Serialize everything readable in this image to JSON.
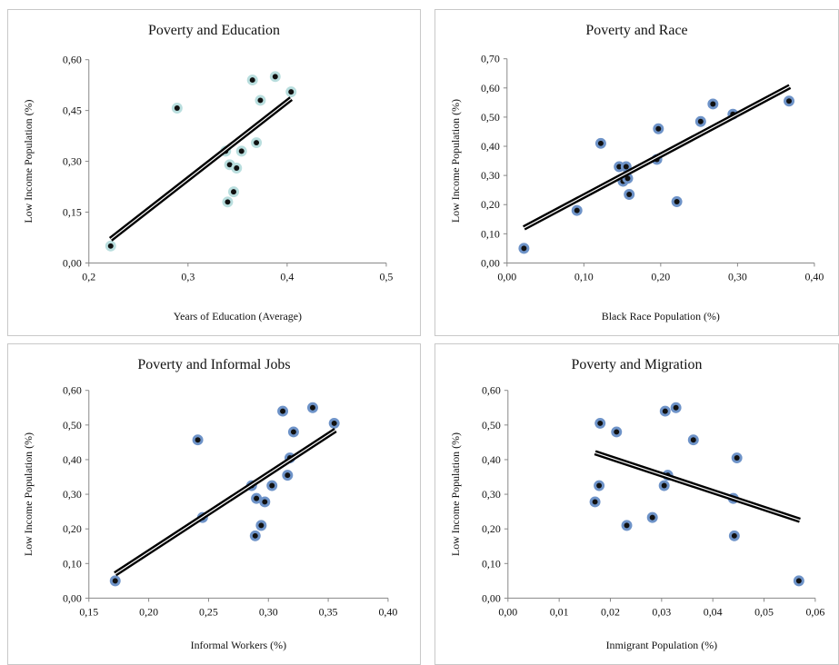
{
  "chart_data": [
    {
      "type": "scatter",
      "title": "Poverty and Education",
      "xlabel": "Years of Education (Average)",
      "ylabel": "Low Income Population (%)",
      "xlim": [
        0.2,
        0.5
      ],
      "ylim": [
        0,
        0.6
      ],
      "x_ticks": [
        "0,2",
        "0,3",
        "0,4",
        "0,5"
      ],
      "x_tick_values": [
        0.2,
        0.3,
        0.4,
        0.5
      ],
      "y_ticks": [
        "0,00",
        "0,15",
        "0,30",
        "0,45",
        "0,60"
      ],
      "y_tick_values": [
        0,
        0.15,
        0.3,
        0.45,
        0.6
      ],
      "points": [
        {
          "x": 0.222,
          "y": 0.05
        },
        {
          "x": 0.289,
          "y": 0.457
        },
        {
          "x": 0.338,
          "y": 0.33
        },
        {
          "x": 0.34,
          "y": 0.18
        },
        {
          "x": 0.342,
          "y": 0.29
        },
        {
          "x": 0.346,
          "y": 0.21
        },
        {
          "x": 0.349,
          "y": 0.28
        },
        {
          "x": 0.354,
          "y": 0.33
        },
        {
          "x": 0.365,
          "y": 0.54
        },
        {
          "x": 0.369,
          "y": 0.355
        },
        {
          "x": 0.373,
          "y": 0.48
        },
        {
          "x": 0.388,
          "y": 0.55
        },
        {
          "x": 0.404,
          "y": 0.505
        }
      ],
      "trendline": {
        "x": [
          0.222,
          0.404
        ],
        "y": [
          0.07,
          0.485
        ]
      },
      "marker_color": "#b9dede"
    },
    {
      "type": "scatter",
      "title": "Poverty and Race",
      "xlabel": "Black Race Population (%)",
      "ylabel": "Low Income Population (%)",
      "xlim": [
        0,
        0.4
      ],
      "ylim": [
        0,
        0.7
      ],
      "x_ticks": [
        "0,00",
        "0,10",
        "0,20",
        "0,30",
        "0,40"
      ],
      "x_tick_values": [
        0,
        0.1,
        0.2,
        0.3,
        0.4
      ],
      "y_ticks": [
        "0,00",
        "0,10",
        "0,20",
        "0,30",
        "0,40",
        "0,50",
        "0,60",
        "0,70"
      ],
      "y_tick_values": [
        0,
        0.1,
        0.2,
        0.3,
        0.4,
        0.5,
        0.6,
        0.7
      ],
      "points": [
        {
          "x": 0.022,
          "y": 0.05
        },
        {
          "x": 0.091,
          "y": 0.18
        },
        {
          "x": 0.122,
          "y": 0.41
        },
        {
          "x": 0.146,
          "y": 0.33
        },
        {
          "x": 0.151,
          "y": 0.28
        },
        {
          "x": 0.155,
          "y": 0.33
        },
        {
          "x": 0.157,
          "y": 0.29
        },
        {
          "x": 0.159,
          "y": 0.235
        },
        {
          "x": 0.195,
          "y": 0.355
        },
        {
          "x": 0.197,
          "y": 0.46
        },
        {
          "x": 0.221,
          "y": 0.21
        },
        {
          "x": 0.252,
          "y": 0.485
        },
        {
          "x": 0.268,
          "y": 0.545
        },
        {
          "x": 0.294,
          "y": 0.51
        },
        {
          "x": 0.367,
          "y": 0.555
        }
      ],
      "trendline": {
        "x": [
          0.022,
          0.368
        ],
        "y": [
          0.12,
          0.605
        ]
      },
      "marker_color": "#6e93c8"
    },
    {
      "type": "scatter",
      "title": "Poverty and Informal Jobs",
      "xlabel": "Informal Workers (%)",
      "ylabel": "Low Income Population (%)",
      "xlim": [
        0.15,
        0.4
      ],
      "ylim": [
        0,
        0.6
      ],
      "x_ticks": [
        "0,15",
        "0,20",
        "0,25",
        "0,30",
        "0,35",
        "0,40"
      ],
      "x_tick_values": [
        0.15,
        0.2,
        0.25,
        0.3,
        0.35,
        0.4
      ],
      "y_ticks": [
        "0,00",
        "0,10",
        "0,20",
        "0,30",
        "0,40",
        "0,50",
        "0,60"
      ],
      "y_tick_values": [
        0,
        0.1,
        0.2,
        0.3,
        0.4,
        0.5,
        0.6
      ],
      "points": [
        {
          "x": 0.172,
          "y": 0.05
        },
        {
          "x": 0.241,
          "y": 0.457
        },
        {
          "x": 0.245,
          "y": 0.233
        },
        {
          "x": 0.286,
          "y": 0.325
        },
        {
          "x": 0.289,
          "y": 0.18
        },
        {
          "x": 0.29,
          "y": 0.288
        },
        {
          "x": 0.294,
          "y": 0.21
        },
        {
          "x": 0.297,
          "y": 0.278
        },
        {
          "x": 0.303,
          "y": 0.325
        },
        {
          "x": 0.312,
          "y": 0.54
        },
        {
          "x": 0.316,
          "y": 0.355
        },
        {
          "x": 0.318,
          "y": 0.405
        },
        {
          "x": 0.321,
          "y": 0.48
        },
        {
          "x": 0.337,
          "y": 0.55
        },
        {
          "x": 0.355,
          "y": 0.505
        }
      ],
      "trendline": {
        "x": [
          0.172,
          0.356
        ],
        "y": [
          0.07,
          0.485
        ]
      },
      "marker_color": "#6e93c8"
    },
    {
      "type": "scatter",
      "title": "Poverty and Migration",
      "xlabel": "Inmigrant Population (%)",
      "ylabel": "Low Income Population (%)",
      "xlim": [
        0,
        0.06
      ],
      "ylim": [
        0,
        0.6
      ],
      "x_ticks": [
        "0,00",
        "0,01",
        "0,02",
        "0,03",
        "0,04",
        "0,05",
        "0,06"
      ],
      "x_tick_values": [
        0,
        0.01,
        0.02,
        0.03,
        0.04,
        0.05,
        0.06
      ],
      "y_ticks": [
        "0,00",
        "0,10",
        "0,20",
        "0,30",
        "0,40",
        "0,50",
        "0,60"
      ],
      "y_tick_values": [
        0,
        0.1,
        0.2,
        0.3,
        0.4,
        0.5,
        0.6
      ],
      "points": [
        {
          "x": 0.017,
          "y": 0.278
        },
        {
          "x": 0.0178,
          "y": 0.325
        },
        {
          "x": 0.018,
          "y": 0.505
        },
        {
          "x": 0.0212,
          "y": 0.48
        },
        {
          "x": 0.0232,
          "y": 0.21
        },
        {
          "x": 0.0282,
          "y": 0.233
        },
        {
          "x": 0.0305,
          "y": 0.325
        },
        {
          "x": 0.0307,
          "y": 0.54
        },
        {
          "x": 0.0312,
          "y": 0.355
        },
        {
          "x": 0.0328,
          "y": 0.55
        },
        {
          "x": 0.0362,
          "y": 0.457
        },
        {
          "x": 0.044,
          "y": 0.288
        },
        {
          "x": 0.0442,
          "y": 0.18
        },
        {
          "x": 0.0447,
          "y": 0.405
        },
        {
          "x": 0.0568,
          "y": 0.05
        }
      ],
      "trendline": {
        "x": [
          0.017,
          0.057
        ],
        "y": [
          0.42,
          0.225
        ]
      },
      "marker_color": "#6e93c8"
    }
  ]
}
